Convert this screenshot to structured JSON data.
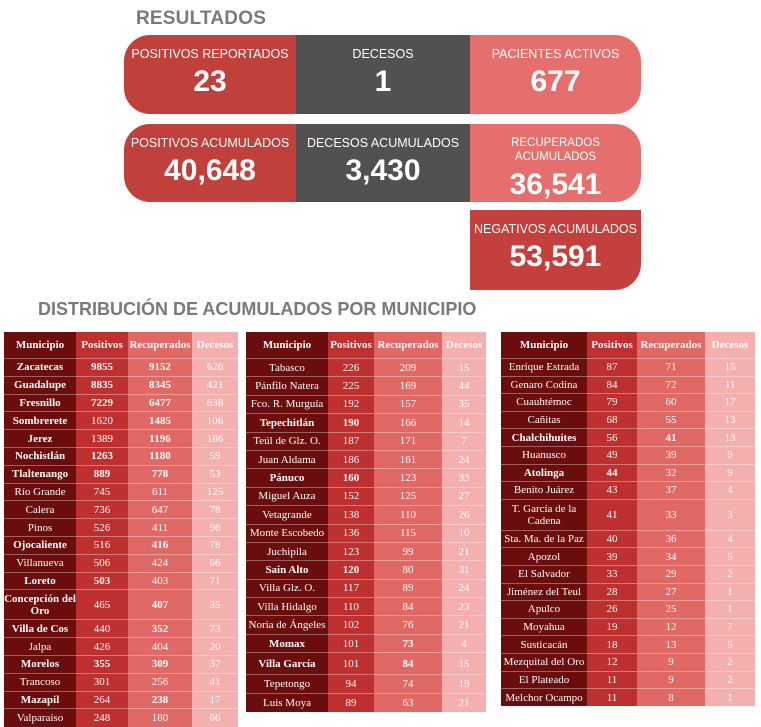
{
  "title": "RESULTADOS",
  "cards": {
    "positivos_reportados": {
      "label": "POSITIVOS REPORTADOS",
      "value": "23"
    },
    "decesos": {
      "label": "DECESOS",
      "value": "1"
    },
    "pacientes_activos": {
      "label": "PACIENTES ACTIVOS",
      "value": "677"
    },
    "positivos_acumulados": {
      "label": "POSITIVOS ACUMULADOS",
      "value": "40,648"
    },
    "decesos_acumulados": {
      "label": "DECESOS ACUMULADOS",
      "value": "3,430"
    },
    "recuperados_acumulados": {
      "label": "RECUPERADOS ACUMULADOS",
      "value": "36,541"
    },
    "negativos_acumulados": {
      "label": "NEGATIVOS ACUMULADOS",
      "value": "53,591"
    }
  },
  "section_title": "DISTRIBUCIÓN DE ACUMULADOS POR MUNICIPIO",
  "headers": {
    "municipio": "Municipio",
    "positivos": "Positivos",
    "recuperados": "Recuperados",
    "decesos": "Decesos"
  },
  "tables": [
    [
      {
        "municipio": "Zacatecas",
        "positivos": "9855",
        "recuperados": "9152",
        "decesos": "626",
        "bold": "all"
      },
      {
        "municipio": "Guadalupe",
        "positivos": "8835",
        "recuperados": "8345",
        "decesos": "421",
        "bold": "all"
      },
      {
        "municipio": "Fresnillo",
        "positivos": "7229",
        "recuperados": "6477",
        "decesos": "638",
        "bold": "all"
      },
      {
        "municipio": "Sombrerete",
        "positivos": "1620",
        "recuperados": "1485",
        "decesos": "106",
        "bold": "mr"
      },
      {
        "municipio": "Jerez",
        "positivos": "1389",
        "recuperados": "1196",
        "decesos": "186",
        "bold": "mr"
      },
      {
        "municipio": "Nochistlán",
        "positivos": "1263",
        "recuperados": "1180",
        "decesos": "59",
        "bold": "all"
      },
      {
        "municipio": "Tlaltenango",
        "positivos": "889",
        "recuperados": "778",
        "decesos": "53",
        "bold": "all"
      },
      {
        "municipio": "Río Grande",
        "positivos": "745",
        "recuperados": "611",
        "decesos": "125",
        "bold": ""
      },
      {
        "municipio": "Calera",
        "positivos": "736",
        "recuperados": "647",
        "decesos": "78",
        "bold": ""
      },
      {
        "municipio": "Pinos",
        "positivos": "526",
        "recuperados": "411",
        "decesos": "96",
        "bold": ""
      },
      {
        "municipio": "Ojocaliente",
        "positivos": "516",
        "recuperados": "416",
        "decesos": "78",
        "bold": "mr"
      },
      {
        "municipio": "Villanueva",
        "positivos": "506",
        "recuperados": "424",
        "decesos": "66",
        "bold": ""
      },
      {
        "municipio": "Loreto",
        "positivos": "503",
        "recuperados": "403",
        "decesos": "71",
        "bold": "mp"
      },
      {
        "municipio": "Concepción del Oro",
        "positivos": "465",
        "recuperados": "407",
        "decesos": "35",
        "bold": "mr",
        "tall": true
      },
      {
        "municipio": "Villa de Cos",
        "positivos": "440",
        "recuperados": "352",
        "decesos": "73",
        "bold": "mr"
      },
      {
        "municipio": "Jalpa",
        "positivos": "426",
        "recuperados": "404",
        "decesos": "20",
        "bold": ""
      },
      {
        "municipio": "Morelos",
        "positivos": "355",
        "recuperados": "309",
        "decesos": "37",
        "bold": "all"
      },
      {
        "municipio": "Trancoso",
        "positivos": "301",
        "recuperados": "256",
        "decesos": "41",
        "bold": ""
      },
      {
        "municipio": "Mazapil",
        "positivos": "264",
        "recuperados": "238",
        "decesos": "17",
        "bold": "mr"
      },
      {
        "municipio": "Valparaíso",
        "positivos": "248",
        "recuperados": "180",
        "decesos": "66",
        "bold": ""
      }
    ],
    [
      {
        "municipio": "Tabasco",
        "positivos": "226",
        "recuperados": "209",
        "decesos": "15",
        "bold": ""
      },
      {
        "municipio": "Pánfilo Natera",
        "positivos": "225",
        "recuperados": "169",
        "decesos": "44",
        "bold": ""
      },
      {
        "municipio": "Fco. R. Murguía",
        "positivos": "192",
        "recuperados": "157",
        "decesos": "35",
        "bold": ""
      },
      {
        "municipio": "Tepechitlán",
        "positivos": "190",
        "recuperados": "166",
        "decesos": "14",
        "bold": "mp"
      },
      {
        "municipio": "Teúl de Glz. O.",
        "positivos": "187",
        "recuperados": "171",
        "decesos": "7",
        "bold": ""
      },
      {
        "municipio": "Juan Aldama",
        "positivos": "186",
        "recuperados": "161",
        "decesos": "24",
        "bold": ""
      },
      {
        "municipio": "Pánuco",
        "positivos": "160",
        "recuperados": "123",
        "decesos": "33",
        "bold": "mp"
      },
      {
        "municipio": "Miguel Auza",
        "positivos": "152",
        "recuperados": "125",
        "decesos": "27",
        "bold": ""
      },
      {
        "municipio": "Vetagrande",
        "positivos": "138",
        "recuperados": "110",
        "decesos": "26",
        "bold": ""
      },
      {
        "municipio": "Monte Escobedo",
        "positivos": "136",
        "recuperados": "115",
        "decesos": "10",
        "bold": ""
      },
      {
        "municipio": "Juchipila",
        "positivos": "123",
        "recuperados": "99",
        "decesos": "21",
        "bold": ""
      },
      {
        "municipio": "Sain Alto",
        "positivos": "120",
        "recuperados": "80",
        "decesos": "31",
        "bold": "mp"
      },
      {
        "municipio": "Villa Glz. O.",
        "positivos": "117",
        "recuperados": "89",
        "decesos": "24",
        "bold": ""
      },
      {
        "municipio": "Villa Hidalgo",
        "positivos": "110",
        "recuperados": "84",
        "decesos": "23",
        "bold": ""
      },
      {
        "municipio": "Noria de Ángeles",
        "positivos": "102",
        "recuperados": "76",
        "decesos": "21",
        "bold": ""
      },
      {
        "municipio": "Momax",
        "positivos": "101",
        "recuperados": "73",
        "decesos": "4",
        "bold": "mr"
      },
      {
        "municipio": "Villa García",
        "positivos": "101",
        "recuperados": "84",
        "decesos": "15",
        "bold": "mr",
        "tall": true
      },
      {
        "municipio": "Tepetongo",
        "positivos": "94",
        "recuperados": "74",
        "decesos": "19",
        "bold": ""
      },
      {
        "municipio": "Luis Moya",
        "positivos": "89",
        "recuperados": "63",
        "decesos": "21",
        "bold": ""
      }
    ],
    [
      {
        "municipio": "Enrique Estrada",
        "positivos": "87",
        "recuperados": "71",
        "decesos": "15",
        "bold": ""
      },
      {
        "municipio": "Genaro Codina",
        "positivos": "84",
        "recuperados": "72",
        "decesos": "11",
        "bold": ""
      },
      {
        "municipio": "Cuauhtémoc",
        "positivos": "79",
        "recuperados": "60",
        "decesos": "17",
        "bold": ""
      },
      {
        "municipio": "Cañitas",
        "positivos": "68",
        "recuperados": "55",
        "decesos": "13",
        "bold": ""
      },
      {
        "municipio": "Chalchihuites",
        "positivos": "56",
        "recuperados": "41",
        "decesos": "13",
        "bold": "mr"
      },
      {
        "municipio": "Huanusco",
        "positivos": "49",
        "recuperados": "39",
        "decesos": "9",
        "bold": ""
      },
      {
        "municipio": "Atolinga",
        "positivos": "44",
        "recuperados": "32",
        "decesos": "9",
        "bold": "mp"
      },
      {
        "municipio": "Benito Juárez",
        "positivos": "43",
        "recuperados": "37",
        "decesos": "4",
        "bold": ""
      },
      {
        "municipio": "T. García de la Cadena",
        "positivos": "41",
        "recuperados": "33",
        "decesos": "3",
        "bold": "",
        "tall": true
      },
      {
        "municipio": "Sta. Ma. de la Paz",
        "positivos": "40",
        "recuperados": "36",
        "decesos": "4",
        "bold": ""
      },
      {
        "municipio": "Apozol",
        "positivos": "39",
        "recuperados": "34",
        "decesos": "5",
        "bold": ""
      },
      {
        "municipio": "El Salvador",
        "positivos": "33",
        "recuperados": "29",
        "decesos": "2",
        "bold": ""
      },
      {
        "municipio": "Jiménez del Teul",
        "positivos": "28",
        "recuperados": "27",
        "decesos": "1",
        "bold": ""
      },
      {
        "municipio": "Apulco",
        "positivos": "26",
        "recuperados": "25",
        "decesos": "1",
        "bold": ""
      },
      {
        "municipio": "Moyahua",
        "positivos": "19",
        "recuperados": "12",
        "decesos": "7",
        "bold": ""
      },
      {
        "municipio": "Susticacán",
        "positivos": "18",
        "recuperados": "13",
        "decesos": "5",
        "bold": ""
      },
      {
        "municipio": "Mezquital del Oro",
        "positivos": "12",
        "recuperados": "9",
        "decesos": "2",
        "bold": ""
      },
      {
        "municipio": "El Plateado",
        "positivos": "11",
        "recuperados": "9",
        "decesos": "2",
        "bold": ""
      },
      {
        "municipio": "Melchor Ocampo",
        "positivos": "11",
        "recuperados": "8",
        "decesos": "1",
        "bold": ""
      }
    ]
  ],
  "colors": {
    "dark_red": "#c0413c",
    "gray": "#525050",
    "light_red": "#e46f6c",
    "municipio_col": "#6b0d0d",
    "positivos_col": "#bd302f",
    "recuperados_col": "#e06966",
    "decesos_col": "#f4b0ae"
  }
}
